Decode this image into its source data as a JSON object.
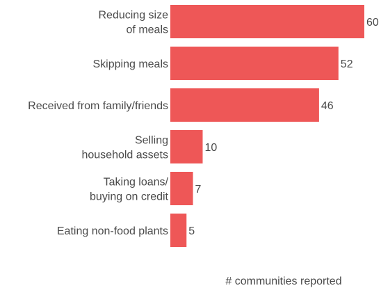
{
  "chart_data": {
    "type": "bar",
    "orientation": "horizontal",
    "categories": [
      [
        "Reducing size",
        "of meals"
      ],
      [
        "Skipping meals"
      ],
      [
        "Received from family/friends"
      ],
      [
        "Selling",
        "household assets"
      ],
      [
        "Taking loans/",
        "buying on credit"
      ],
      [
        "Eating non-food plants"
      ]
    ],
    "values": [
      60,
      52,
      46,
      10,
      7,
      5
    ],
    "xlabel": "# communities reported",
    "ylabel": "",
    "xlim": [
      0,
      60
    ],
    "grid": false,
    "bar_color": "#ee5757"
  }
}
